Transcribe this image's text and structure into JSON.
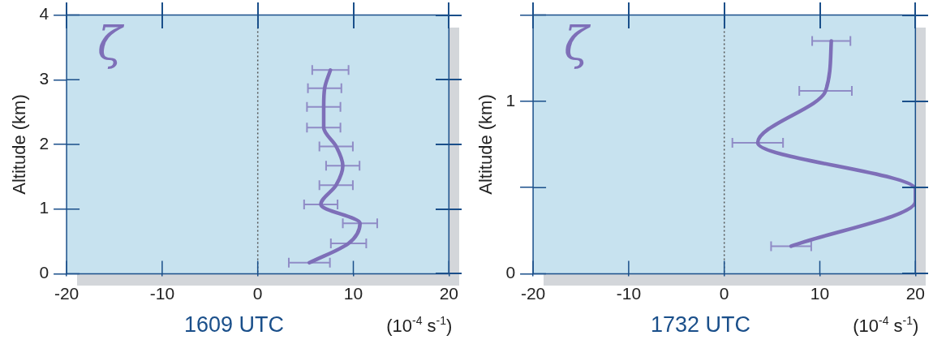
{
  "chart_data": [
    {
      "type": "line",
      "title": "1609 UTC",
      "xlabel": "(10$^{-4}$ s$^{-1}$)",
      "ylabel": "Altitude (km)",
      "xlim": [
        -20,
        20
      ],
      "xticks": [
        -20,
        -10,
        0,
        10,
        20
      ],
      "ylim": [
        0,
        4
      ],
      "yticks": [
        0,
        1,
        2,
        3,
        4
      ],
      "series": [
        {
          "name": "ζ",
          "color": "#7e6fb8",
          "x": [
            7.6,
            7.0,
            6.9,
            6.9,
            8.2,
            8.9,
            8.2,
            6.6,
            10.7,
            9.5,
            5.4
          ],
          "values": [
            3.15,
            2.87,
            2.58,
            2.26,
            1.97,
            1.67,
            1.37,
            1.07,
            0.78,
            0.47,
            0.17
          ],
          "xerrors": [
            1.9,
            1.75,
            1.75,
            1.75,
            1.75,
            1.75,
            1.75,
            1.75,
            1.8,
            1.85,
            2.15
          ]
        }
      ],
      "ref_lines": [
        {
          "axis": "x",
          "value": 0,
          "line_style": "dotted"
        }
      ],
      "grid": false,
      "legend": false
    },
    {
      "type": "line",
      "title": "1732 UTC",
      "xlabel": "(10$^{-4}$ s$^{-1}$)",
      "ylabel": "Altitude (km)",
      "xlim": [
        -20,
        20
      ],
      "xticks": [
        -20,
        -10,
        0,
        10,
        20
      ],
      "ylim": [
        0,
        1.5
      ],
      "yticks": [
        0,
        {
          "value": 0.5,
          "label": null
        },
        1,
        {
          "value": 1.5,
          "label": null
        }
      ],
      "series": [
        {
          "name": "ζ",
          "color": "#7e6fb8",
          "x": [
            11.2,
            10.6,
            3.5,
            20,
            20,
            7.0
          ],
          "values": [
            1.35,
            1.06,
            0.76,
            0.49,
            0.42,
            0.16
          ],
          "xerrors": [
            2.0,
            2.75,
            2.65,
            null,
            null,
            2.1
          ]
        }
      ],
      "ref_lines": [
        {
          "axis": "x",
          "value": 0,
          "line_style": "dotted"
        }
      ],
      "grid": false,
      "legend": false
    }
  ]
}
